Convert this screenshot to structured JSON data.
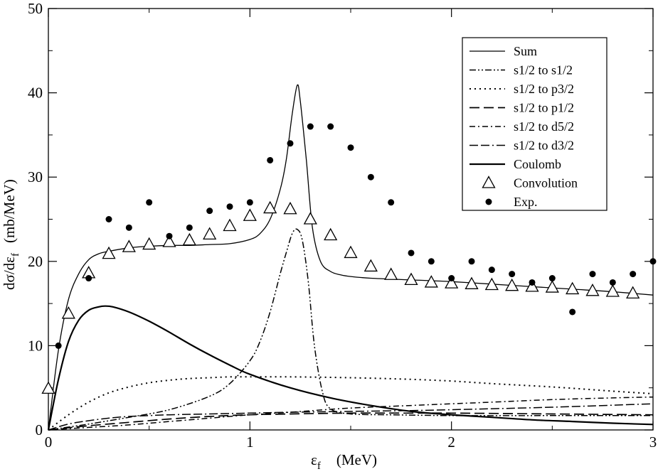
{
  "chart_data": {
    "type": "line",
    "title": "",
    "xlabel": "ε_f (MeV)",
    "ylabel": "dσ/dε_f (mb/MeV)",
    "xlabel_parts": {
      "sym": "ε",
      "sub": "f",
      "unit": "(MeV)"
    },
    "ylabel_parts": {
      "sym": "dσ/dε",
      "sub": "f",
      "unit": "(mb/MeV)"
    },
    "xlim": [
      0,
      3
    ],
    "ylim": [
      0,
      50
    ],
    "xticks": [
      0,
      1,
      2,
      3
    ],
    "yticks": [
      0,
      10,
      20,
      30,
      40,
      50
    ],
    "legend_position": "top-right",
    "series": [
      {
        "name": "Sum",
        "style": "solid-thin",
        "x": [
          0,
          0.05,
          0.1,
          0.15,
          0.2,
          0.25,
          0.3,
          0.4,
          0.5,
          0.6,
          0.7,
          0.8,
          0.9,
          1.0,
          1.05,
          1.1,
          1.15,
          1.18,
          1.21,
          1.235,
          1.25,
          1.28,
          1.31,
          1.35,
          1.4,
          1.45,
          1.5,
          1.6,
          1.8,
          2.0,
          2.2,
          2.4,
          2.6,
          2.8,
          3.0
        ],
        "y": [
          0,
          9.5,
          15.5,
          18.5,
          20.2,
          20.9,
          21.2,
          21.6,
          21.8,
          21.9,
          21.9,
          22.0,
          22.1,
          22.6,
          23.3,
          25.0,
          28.5,
          32.0,
          37.5,
          40.9,
          39.0,
          32.0,
          24.0,
          20.0,
          18.8,
          18.4,
          18.2,
          18.0,
          17.8,
          17.6,
          17.3,
          17.0,
          16.7,
          16.4,
          16.0
        ]
      },
      {
        "name": "s1/2 to s1/2",
        "style": "dash-dot-dot",
        "x": [
          0,
          0.2,
          0.4,
          0.6,
          0.8,
          0.9,
          1.0,
          1.05,
          1.1,
          1.15,
          1.18,
          1.21,
          1.235,
          1.26,
          1.29,
          1.32,
          1.36,
          1.4,
          1.5,
          1.7,
          2.0,
          2.5,
          3.0
        ],
        "y": [
          0,
          0.7,
          1.5,
          2.4,
          4.0,
          5.5,
          8.2,
          10.5,
          14.0,
          18.5,
          21.0,
          23.3,
          23.8,
          22.5,
          17.5,
          10.0,
          4.5,
          2.5,
          1.9,
          1.8,
          1.7,
          1.7,
          1.7
        ]
      },
      {
        "name": "s1/2 to p3/2",
        "style": "dotted",
        "x": [
          0,
          0.1,
          0.2,
          0.3,
          0.4,
          0.5,
          0.6,
          0.7,
          0.8,
          0.9,
          1.0,
          1.2,
          1.5,
          1.8,
          2.0,
          2.2,
          2.5,
          2.8,
          3.0
        ],
        "y": [
          0,
          1.8,
          3.3,
          4.4,
          5.1,
          5.6,
          5.9,
          6.1,
          6.2,
          6.3,
          6.3,
          6.3,
          6.2,
          6.0,
          5.8,
          5.5,
          5.1,
          4.6,
          4.3
        ]
      },
      {
        "name": "s1/2 to p1/2",
        "style": "long-dash",
        "x": [
          0,
          0.2,
          0.4,
          0.6,
          0.8,
          1.0,
          1.2,
          1.5,
          1.8,
          2.0,
          2.5,
          3.0
        ],
        "y": [
          0,
          0.5,
          0.9,
          1.3,
          1.6,
          1.8,
          1.9,
          2.0,
          2.0,
          2.0,
          1.9,
          1.8
        ]
      },
      {
        "name": "s1/2 to d5/2",
        "style": "dash-dot",
        "x": [
          0,
          0.2,
          0.4,
          0.6,
          0.8,
          1.0,
          1.2,
          1.5,
          1.8,
          2.0,
          2.2,
          2.5,
          2.8,
          3.0
        ],
        "y": [
          0,
          0.3,
          0.6,
          1.0,
          1.4,
          1.8,
          2.1,
          2.6,
          2.9,
          3.1,
          3.3,
          3.6,
          3.8,
          3.9
        ]
      },
      {
        "name": "s1/2 to d3/2",
        "style": "dash-dash-dot",
        "x": [
          0,
          0.1,
          0.2,
          0.3,
          0.4,
          0.5,
          0.6,
          0.8,
          1.0,
          1.2,
          1.5,
          1.8,
          2.0,
          2.5,
          3.0
        ],
        "y": [
          0,
          0.7,
          1.1,
          1.4,
          1.6,
          1.7,
          1.8,
          1.9,
          2.0,
          2.1,
          2.2,
          2.3,
          2.4,
          2.7,
          3.1
        ]
      },
      {
        "name": "Coulomb",
        "style": "solid-thick",
        "x": [
          0,
          0.05,
          0.1,
          0.15,
          0.2,
          0.25,
          0.28,
          0.32,
          0.4,
          0.5,
          0.6,
          0.7,
          0.8,
          0.9,
          1.0,
          1.2,
          1.4,
          1.6,
          1.8,
          2.0,
          2.2,
          2.4,
          2.6,
          2.8,
          3.0
        ],
        "y": [
          0,
          6.0,
          10.5,
          13.0,
          14.2,
          14.6,
          14.7,
          14.6,
          14.0,
          12.9,
          11.6,
          10.2,
          8.9,
          7.7,
          6.6,
          5.0,
          3.8,
          2.9,
          2.2,
          1.8,
          1.5,
          1.2,
          1.0,
          0.8,
          0.65
        ]
      }
    ],
    "markers": [
      {
        "name": "Convolution",
        "marker": "triangle-open",
        "x": [
          0.0,
          0.1,
          0.2,
          0.3,
          0.4,
          0.5,
          0.6,
          0.7,
          0.8,
          0.9,
          1.0,
          1.1,
          1.2,
          1.3,
          1.4,
          1.5,
          1.6,
          1.7,
          1.8,
          1.9,
          2.0,
          2.1,
          2.2,
          2.3,
          2.4,
          2.5,
          2.6,
          2.7,
          2.8,
          2.9
        ],
        "y": [
          4.9,
          13.8,
          18.6,
          20.9,
          21.7,
          22.0,
          22.3,
          22.5,
          23.2,
          24.2,
          25.4,
          26.3,
          26.2,
          25.0,
          23.1,
          21.0,
          19.4,
          18.4,
          17.8,
          17.5,
          17.4,
          17.3,
          17.2,
          17.1,
          17.0,
          16.9,
          16.7,
          16.5,
          16.4,
          16.2
        ]
      },
      {
        "name": "Exp.",
        "marker": "filled-circle",
        "x": [
          0.05,
          0.2,
          0.3,
          0.4,
          0.5,
          0.6,
          0.7,
          0.8,
          0.9,
          1.0,
          1.1,
          1.2,
          1.3,
          1.4,
          1.5,
          1.6,
          1.7,
          1.8,
          1.9,
          2.0,
          2.1,
          2.2,
          2.3,
          2.4,
          2.5,
          2.6,
          2.7,
          2.8,
          2.9,
          3.0
        ],
        "y": [
          10,
          18,
          25,
          24,
          27,
          23,
          24,
          26,
          26.5,
          27,
          32,
          34,
          36,
          36,
          33.5,
          30,
          27,
          21,
          20,
          18,
          20,
          19,
          18.5,
          17.5,
          18,
          14,
          18.5,
          17.5,
          18.5,
          20
        ]
      }
    ]
  }
}
